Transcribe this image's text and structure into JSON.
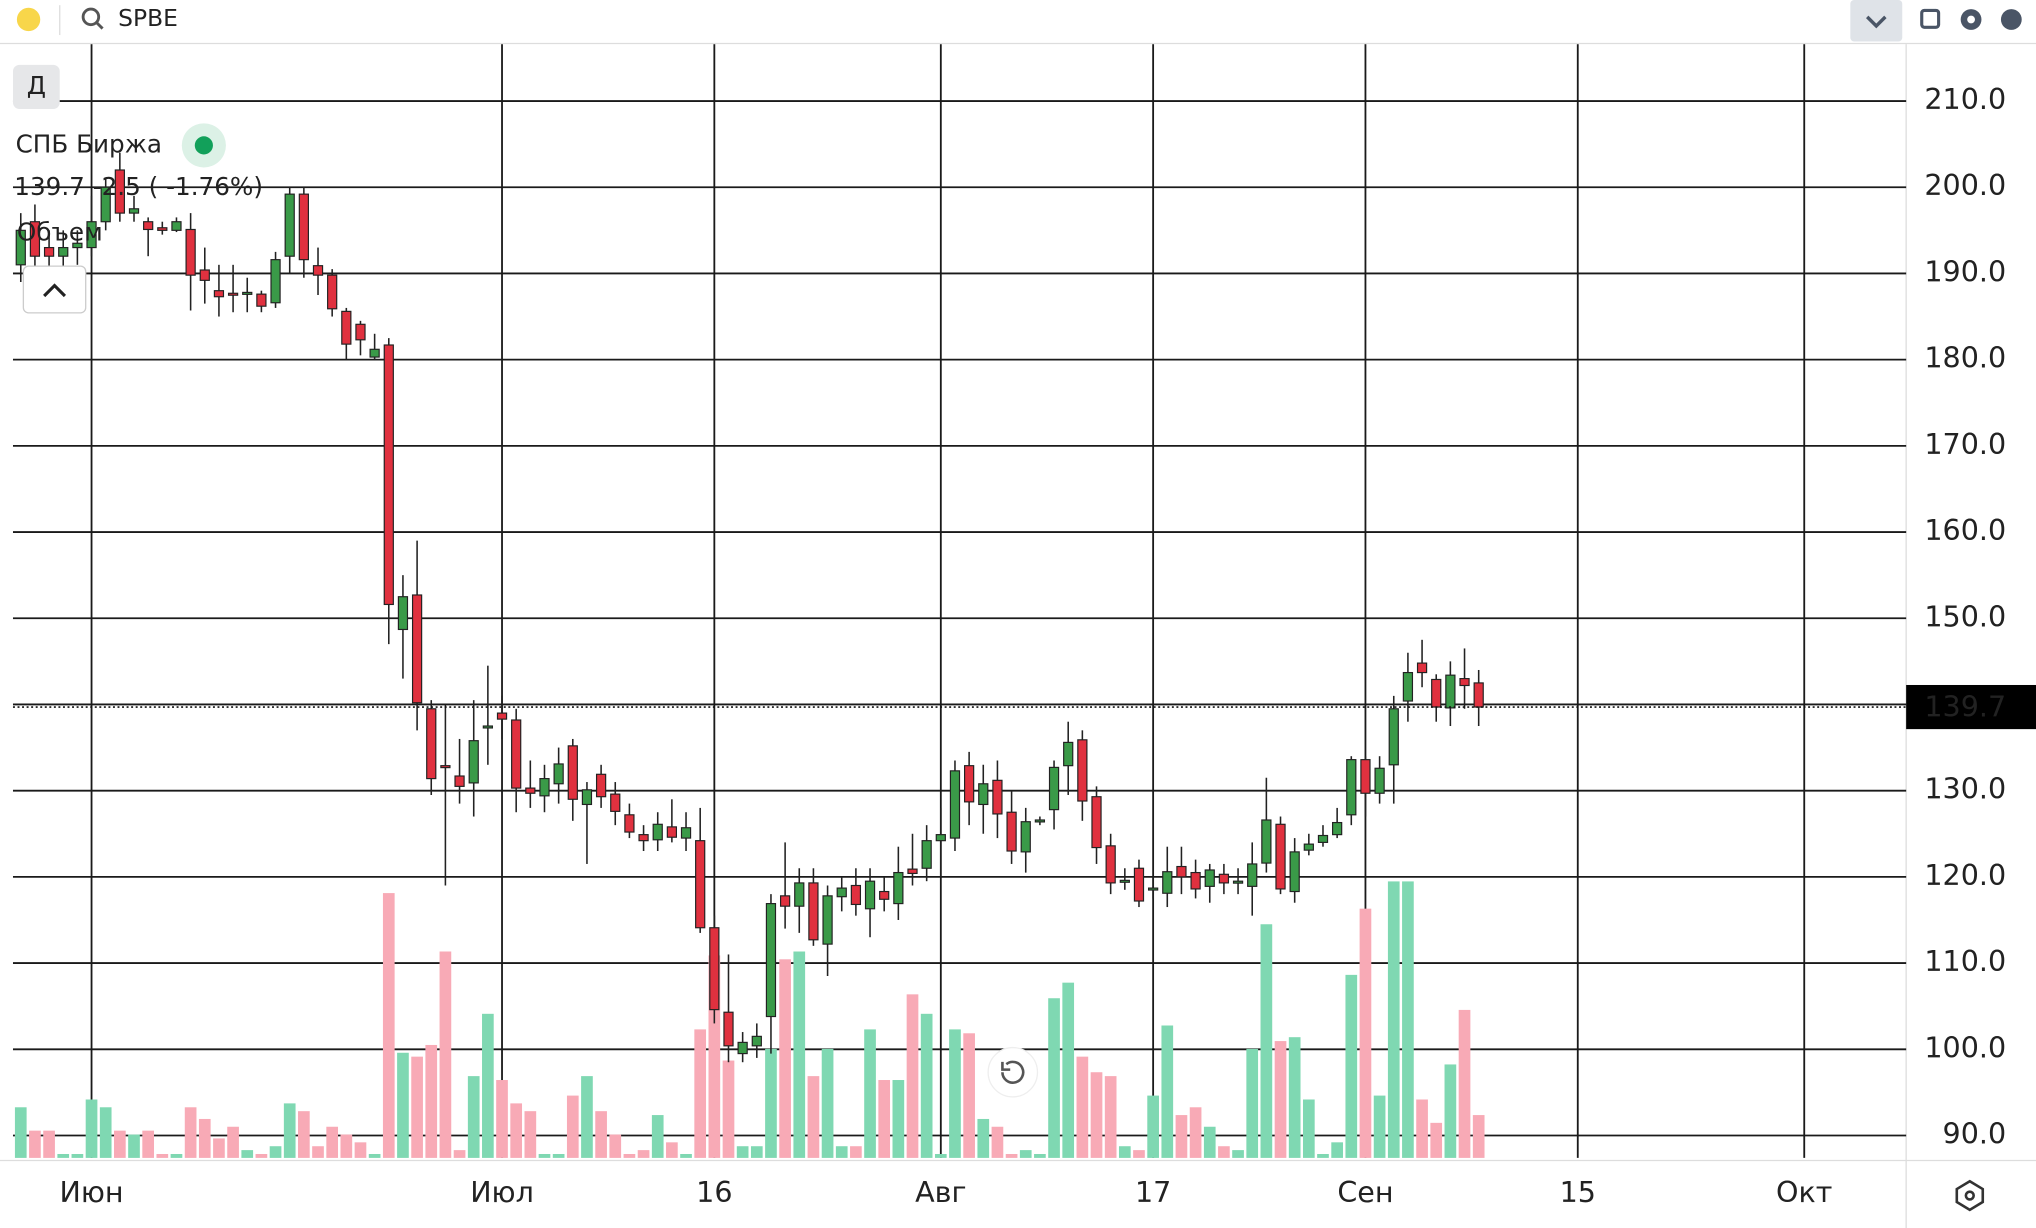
{
  "ui": {
    "search": "SPBE",
    "period": "Д",
    "instrument": "СПБ Биржа",
    "quote": "139.7 -2.5 ( -1.76%)",
    "volume_label": "Объем"
  },
  "chart_data": {
    "type": "candlestick",
    "grid": true,
    "colors": {
      "up": "#3a9a48",
      "down": "#e0313f",
      "volume_up": "#7fd8b2",
      "volume_down": "#f8aab6"
    },
    "xlim": [
      -0.55,
      133.2
    ],
    "xticks": [
      {
        "value": 5,
        "label": "Июн"
      },
      {
        "value": 34,
        "label": "Июл"
      },
      {
        "value": 49,
        "label": "16"
      },
      {
        "value": 65,
        "label": "Авг"
      },
      {
        "value": 80,
        "label": "17"
      },
      {
        "value": 95,
        "label": "Сен"
      },
      {
        "value": 110,
        "label": "15"
      },
      {
        "value": 126,
        "label": "Окт"
      }
    ],
    "ylim": [
      87.4,
      216.6
    ],
    "yticks": [
      {
        "value": 90,
        "label": "90.0"
      },
      {
        "value": 100,
        "label": "100.0"
      },
      {
        "value": 110,
        "label": "110.0"
      },
      {
        "value": 120,
        "label": "120.0"
      },
      {
        "value": 130,
        "label": "130.0"
      },
      {
        "value": 140,
        "label": "140.0"
      },
      {
        "value": 150,
        "label": "150.0"
      },
      {
        "value": 160,
        "label": "160.0"
      },
      {
        "value": 170,
        "label": "170.0"
      },
      {
        "value": 180,
        "label": "180.0"
      },
      {
        "value": 190,
        "label": "190.0"
      },
      {
        "value": 200,
        "label": "200.0"
      },
      {
        "value": 210,
        "label": "210.0"
      }
    ],
    "x": [
      0,
      1,
      2,
      3,
      4,
      5,
      6,
      7,
      8,
      9,
      10,
      11,
      12,
      13,
      14,
      15,
      16,
      17,
      18,
      19,
      20,
      21,
      22,
      23,
      24,
      25,
      26,
      27,
      28,
      29,
      30,
      31,
      32,
      33,
      34,
      35,
      36,
      37,
      38,
      39,
      40,
      41,
      42,
      43,
      44,
      45,
      46,
      47,
      48,
      49,
      50,
      51,
      52,
      53,
      54,
      55,
      56,
      57,
      58,
      59,
      60,
      61,
      62,
      63,
      64,
      65,
      66,
      67,
      68,
      69,
      70,
      71,
      72,
      73,
      74,
      75,
      76,
      77,
      78,
      79,
      80,
      81,
      82,
      83,
      84,
      85,
      86,
      87,
      88,
      89,
      90,
      91,
      92,
      93,
      94,
      95,
      96,
      97,
      98,
      99,
      100,
      101,
      102,
      103
    ],
    "open": [
      191,
      196,
      193,
      192,
      193,
      193,
      196,
      202,
      197,
      196,
      195.3,
      195,
      195.1,
      190.4,
      188,
      187.7,
      187.7,
      187.6,
      186.6,
      192,
      199.2,
      190.9,
      189.8,
      185.6,
      184.1,
      180.3,
      181.7,
      148.7,
      152.7,
      139.5,
      132.9,
      131.7,
      130.9,
      137.3,
      139,
      138.2,
      130.3,
      129.4,
      130.8,
      135.2,
      128.4,
      131.9,
      129.6,
      127.2,
      124.9,
      124.3,
      125.8,
      124.5,
      124.2,
      114.1,
      104.3,
      99.5,
      100.4,
      103.8,
      117.8,
      116.6,
      119.3,
      112.2,
      117.7,
      119,
      116.3,
      118.3,
      116.9,
      120.9,
      121,
      124.2,
      124.5,
      132.9,
      128.4,
      131.2,
      127.5,
      122.9,
      126.5,
      127.8,
      132.9,
      135.9,
      129.3,
      123.6,
      119.6,
      121,
      118.7,
      118.1,
      121.2,
      120.5,
      118.9,
      120.3,
      119.5,
      118.9,
      121.6,
      126.1,
      118.3,
      123.1,
      124,
      124.9,
      127.2,
      133.6,
      129.7,
      133,
      140.4,
      144.8,
      142.9,
      139.6,
      143,
      142.5
    ],
    "high": [
      197,
      198,
      195,
      195,
      195,
      199,
      201,
      204,
      199,
      196.5,
      196,
      196.5,
      197,
      193,
      191,
      191,
      189.5,
      188,
      192.5,
      200,
      200,
      193,
      190.5,
      186,
      184.5,
      183,
      182.5,
      155,
      159,
      140.5,
      140,
      136,
      140.5,
      144.5,
      141,
      139.5,
      133.5,
      133,
      135,
      136,
      131,
      133,
      131,
      128.5,
      126,
      127.5,
      129,
      127.5,
      128,
      115.5,
      111,
      102,
      103,
      118,
      124,
      121,
      121,
      119,
      120,
      121,
      121,
      120,
      123.5,
      125,
      126,
      128,
      133.5,
      134.5,
      133,
      133.5,
      130,
      128,
      127,
      133.5,
      138,
      137,
      130.5,
      125,
      121,
      122,
      120,
      123.5,
      123.5,
      122,
      121.5,
      121.5,
      121,
      124,
      131.5,
      127,
      124.5,
      125,
      126,
      128,
      134,
      134,
      134,
      141,
      146,
      147.5,
      143.5,
      145,
      146.5,
      144
    ],
    "low": [
      189,
      190,
      188,
      190,
      191,
      192,
      195,
      196,
      196,
      192,
      194.5,
      194.8,
      185.7,
      186.5,
      185,
      185.5,
      185.5,
      185.5,
      186,
      190,
      189.5,
      187.5,
      185,
      180,
      180.5,
      180,
      147,
      143,
      137,
      129.5,
      119,
      128.5,
      127,
      133,
      136,
      127.5,
      128,
      127.5,
      128.5,
      126.5,
      121.5,
      128,
      126,
      124.5,
      123,
      123,
      124,
      123,
      113.5,
      103,
      98.5,
      98.5,
      99,
      99.5,
      114,
      113.5,
      112,
      108.5,
      116,
      115.5,
      113,
      116,
      115,
      119,
      119.5,
      120,
      123,
      126,
      125,
      124.5,
      121.5,
      120.5,
      126,
      125.5,
      129.5,
      126.5,
      121.5,
      118,
      118.5,
      116.5,
      117.5,
      116.5,
      118,
      117.5,
      117,
      118,
      118,
      115.5,
      120.5,
      118,
      117,
      122.5,
      123.5,
      124.5,
      126,
      127,
      128.5,
      128.5,
      138,
      142,
      138,
      137.5,
      139.5,
      137.5
    ],
    "close": [
      195,
      192,
      192,
      193,
      193.5,
      196,
      200,
      197,
      197.5,
      195.1,
      195,
      196,
      189.8,
      189.2,
      187.3,
      187.6,
      187.8,
      186.2,
      191.6,
      199.2,
      191.6,
      189.8,
      185.9,
      181.8,
      182.3,
      181.2,
      151.6,
      152.5,
      140.2,
      131.4,
      132.7,
      130.5,
      135.8,
      137.5,
      138.3,
      130.3,
      129.7,
      131.4,
      133.1,
      129,
      130.1,
      129.3,
      127.6,
      125.2,
      124.2,
      126.1,
      124.6,
      125.7,
      114.1,
      104.6,
      100.4,
      100.8,
      101.5,
      116.9,
      116.6,
      119.3,
      112.7,
      117.8,
      118.7,
      116.8,
      119.5,
      117.4,
      120.5,
      120.4,
      124.2,
      124.9,
      132.3,
      128.7,
      130.8,
      127.3,
      123,
      126.4,
      126.6,
      132.7,
      135.6,
      128.8,
      123.4,
      119.3,
      119.6,
      117.2,
      118.7,
      120.6,
      120,
      118.6,
      120.8,
      119.3,
      119.5,
      121.5,
      126.6,
      118.6,
      122.9,
      123.8,
      124.8,
      126.3,
      133.6,
      129.7,
      132.6,
      139.5,
      143.7,
      143.7,
      139.7,
      143.4,
      142.2,
      139.7
    ],
    "volume": [
      13,
      7,
      7,
      1,
      1,
      15,
      13,
      7,
      6,
      7,
      1,
      1,
      13,
      10,
      5,
      8,
      2,
      1,
      3,
      14,
      12,
      3,
      8,
      6,
      4,
      1,
      68,
      27,
      26,
      29,
      53,
      2,
      21,
      37,
      20,
      14,
      12,
      1,
      1,
      16,
      21,
      12,
      6,
      1,
      2,
      11,
      4,
      1,
      33,
      52,
      25,
      3,
      3,
      28,
      51,
      53,
      21,
      28,
      3,
      3,
      33,
      20,
      20,
      42,
      37,
      1,
      33,
      32,
      10,
      8,
      1,
      2,
      1,
      41,
      45,
      26,
      22,
      21,
      3,
      2,
      16,
      34,
      11,
      13,
      8,
      3,
      2,
      28,
      60,
      30,
      31,
      15,
      1,
      4,
      47,
      64,
      16,
      71,
      71,
      15,
      9,
      24,
      38,
      11
    ]
  }
}
